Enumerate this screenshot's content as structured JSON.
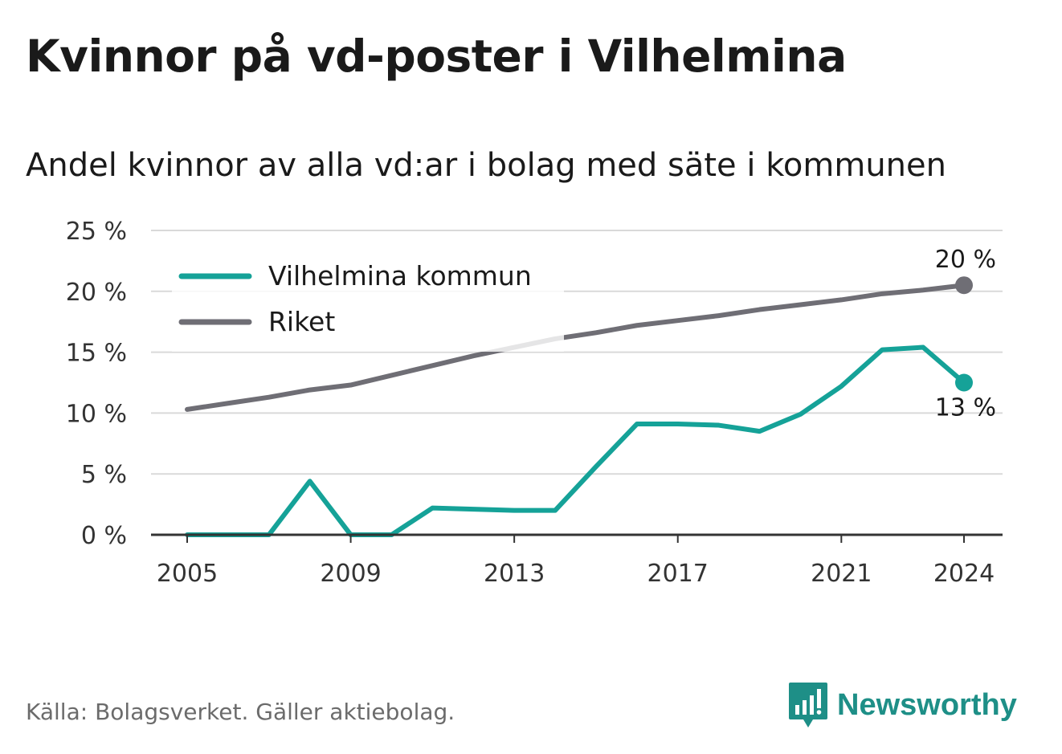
{
  "title": "Kvinnor på vd-poster i Vilhelmina",
  "subtitle": "Andel kvinnor av alla vd:ar i bolag med säte i kommunen",
  "footer": "Källa: Bolagsverket. Gäller aktiebolag.",
  "brand": {
    "name": "Newsworthy",
    "icon": "newsworthy-logo-icon",
    "color": "#1e8f87"
  },
  "chart_data": {
    "type": "line",
    "x": [
      2005,
      2006,
      2007,
      2008,
      2009,
      2010,
      2011,
      2012,
      2013,
      2014,
      2015,
      2016,
      2017,
      2018,
      2019,
      2020,
      2021,
      2022,
      2023,
      2024
    ],
    "x_ticks": [
      "2005",
      "2009",
      "2013",
      "2017",
      "2021",
      "2024"
    ],
    "y_ticks": [
      "0 %",
      "5 %",
      "10 %",
      "15 %",
      "20 %",
      "25 %"
    ],
    "ylim": [
      0,
      25
    ],
    "grid": true,
    "legend_placement": "top-left",
    "series": [
      {
        "name": "Vilhelmina kommun",
        "color": "#15a298",
        "values": [
          0,
          0,
          0,
          4.4,
          0,
          0,
          2.2,
          2.1,
          2.0,
          2.0,
          5.6,
          9.1,
          9.1,
          9.0,
          8.5,
          9.9,
          12.2,
          15.2,
          15.4,
          12.5
        ],
        "end_label": "13 %"
      },
      {
        "name": "Riket",
        "color": "#6f6e75",
        "values": [
          10.3,
          10.8,
          11.3,
          11.9,
          12.3,
          13.1,
          13.9,
          14.7,
          15.4,
          16.1,
          16.6,
          17.2,
          17.6,
          18.0,
          18.5,
          18.9,
          19.3,
          19.8,
          20.1,
          20.5
        ],
        "end_label": "20 %"
      }
    ]
  }
}
